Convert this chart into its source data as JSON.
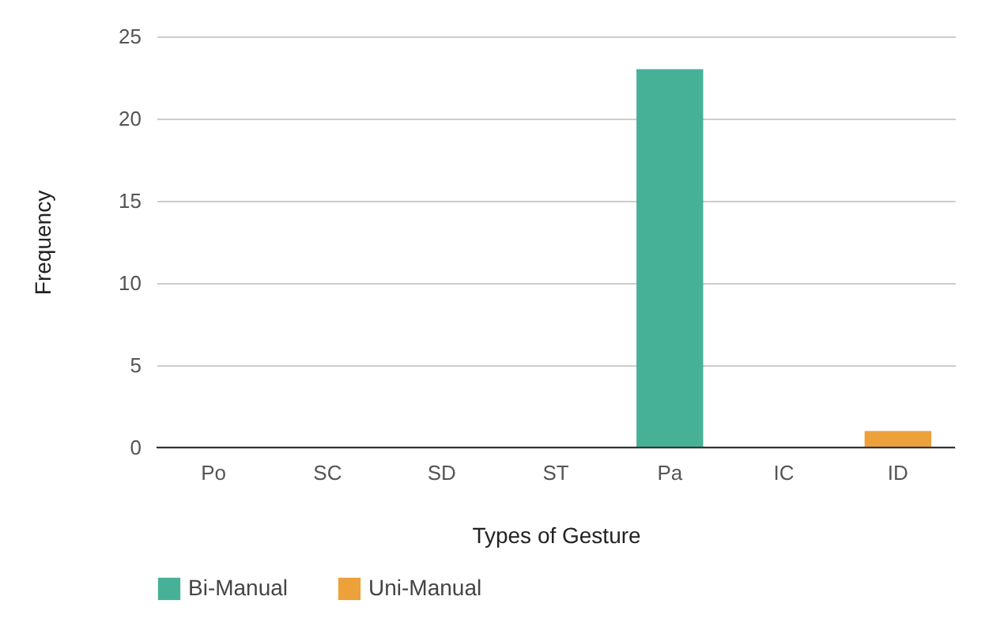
{
  "chart_data": {
    "type": "bar",
    "xlabel": "Types of Gesture",
    "ylabel": "Frequency",
    "categories": [
      "Po",
      "SC",
      "SD",
      "ST",
      "Pa",
      "IC",
      "ID"
    ],
    "stacked": true,
    "series": [
      {
        "name": "Bi-Manual",
        "color": "#47b197",
        "values": [
          0,
          0,
          0,
          0,
          23,
          0,
          0
        ]
      },
      {
        "name": "Uni-Manual",
        "color": "#eca13a",
        "values": [
          0,
          0,
          0,
          0,
          0,
          0,
          1
        ]
      }
    ],
    "ylim": [
      0,
      25
    ],
    "yticks": [
      0,
      5,
      10,
      15,
      20,
      25
    ],
    "grid": "y",
    "legend": "bottom"
  }
}
